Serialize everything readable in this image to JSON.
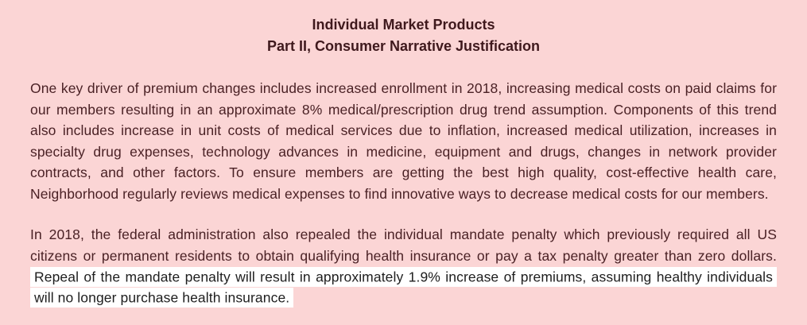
{
  "page": {
    "colors": {
      "page-bg": "#fbd5d5",
      "text": "#4a2125",
      "title-text": "#3f191d",
      "highlight-bg": "#ffffff",
      "highlight-text": "#1e1e1e"
    }
  },
  "document": {
    "title_line1": "Individual Market Products",
    "title_line2": "Part II, Consumer Narrative Justification",
    "paragraph1": "One key driver of premium changes includes increased enrollment in 2018, increasing medical costs on paid claims for our members resulting in an approximate 8% medical/prescription drug trend assumption. Components of this trend also includes increase in unit costs of medical services due to inflation, increased medical utilization, increases in specialty drug expenses, technology advances in medicine, equipment and drugs, changes in network provider contracts, and other factors. To ensure members are getting the best high quality, cost-effective health care, Neighborhood regularly reviews medical expenses to find innovative ways to decrease medical costs for our members.",
    "paragraph2_normal": "In 2018, the federal administration also repealed the individual mandate penalty which previously required all US citizens or permanent residents to obtain qualifying health insurance or pay a tax penalty greater than zero dollars. ",
    "paragraph2_highlighted": "Repeal of the mandate penalty will result in approximately 1.9% increase of premiums, assuming healthy individuals will no longer purchase health insurance."
  }
}
